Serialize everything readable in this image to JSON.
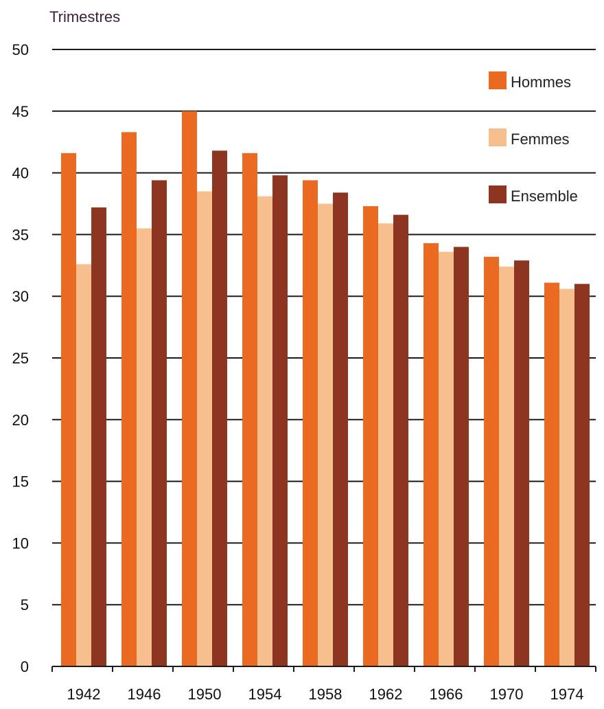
{
  "chart_data": {
    "type": "bar",
    "ylabel": "Trimestres",
    "xlabel": "",
    "categories": [
      "1942",
      "1946",
      "1950",
      "1954",
      "1958",
      "1962",
      "1966",
      "1970",
      "1974"
    ],
    "series": [
      {
        "name": "Hommes",
        "color": "#ea6a22",
        "values": [
          41.6,
          43.3,
          45.0,
          41.6,
          39.4,
          37.3,
          34.3,
          33.2,
          31.1
        ]
      },
      {
        "name": "Femmes",
        "color": "#f7bf8e",
        "values": [
          32.6,
          35.5,
          38.5,
          38.1,
          37.5,
          35.9,
          33.6,
          32.4,
          30.6
        ]
      },
      {
        "name": "Ensemble",
        "color": "#8e3521",
        "values": [
          37.2,
          39.4,
          41.8,
          39.8,
          38.4,
          36.6,
          34.0,
          32.9,
          31.0
        ]
      }
    ],
    "ylim": [
      0,
      50
    ],
    "yticks": [
      0,
      5,
      10,
      15,
      20,
      25,
      30,
      35,
      40,
      45,
      50
    ],
    "grid": true,
    "legend_position": "top-right"
  }
}
